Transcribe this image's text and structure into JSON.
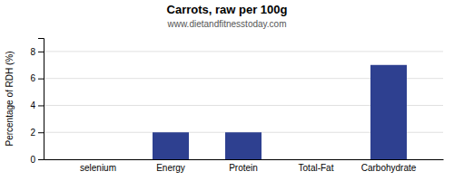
{
  "chart_data": {
    "type": "bar",
    "title": "Carrots, raw per 100g",
    "subtitle": "www.dietandfitnesstoday.com",
    "categories": [
      "selenium",
      "Energy",
      "Protein",
      "Total-Fat",
      "Carbohydrate"
    ],
    "values": [
      0,
      2,
      2,
      0,
      7
    ],
    "color": "#2e4090",
    "ylabel": "Percentage of RDH (%)",
    "ylim": [
      0,
      9
    ],
    "yticks": [
      0,
      2,
      4,
      6,
      8
    ],
    "grid": true
  }
}
